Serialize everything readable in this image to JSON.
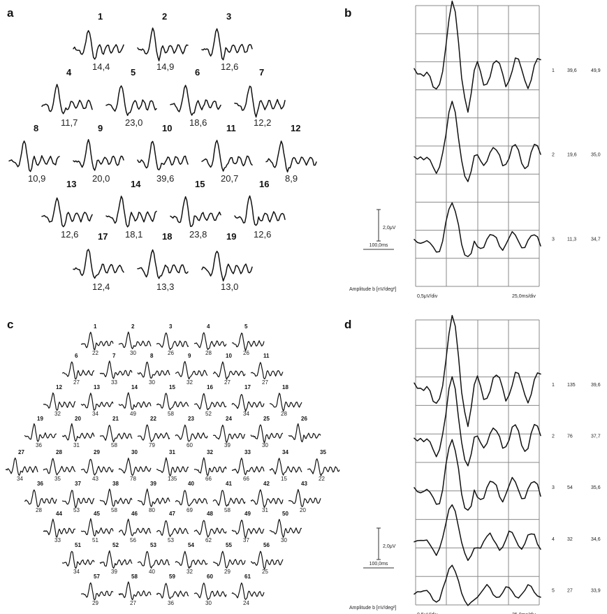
{
  "panels": {
    "a": {
      "letter": "a",
      "cells": [
        {
          "n": "1",
          "v": "14,4"
        },
        {
          "n": "2",
          "v": "14,9"
        },
        {
          "n": "3",
          "v": "12,6"
        },
        {
          "n": "4",
          "v": "11,7"
        },
        {
          "n": "5",
          "v": "23,0"
        },
        {
          "n": "6",
          "v": "18,6"
        },
        {
          "n": "7",
          "v": "12,2"
        },
        {
          "n": "8",
          "v": "10,9"
        },
        {
          "n": "9",
          "v": "20,0"
        },
        {
          "n": "10",
          "v": "39,6"
        },
        {
          "n": "11",
          "v": "20,7"
        },
        {
          "n": "12",
          "v": "8,9"
        },
        {
          "n": "13",
          "v": "12,6"
        },
        {
          "n": "14",
          "v": "18,1"
        },
        {
          "n": "15",
          "v": "23,8"
        },
        {
          "n": "16",
          "v": "12,6"
        },
        {
          "n": "17",
          "v": "12,4"
        },
        {
          "n": "18",
          "v": "13,3"
        },
        {
          "n": "19",
          "v": "13,0"
        }
      ]
    },
    "b": {
      "letter": "b",
      "rows": [
        {
          "idx": "1",
          "amp": "39,6",
          "lat": "49,9"
        },
        {
          "idx": "2",
          "amp": "19,6",
          "lat": "35,0"
        },
        {
          "idx": "3",
          "amp": "11,3",
          "lat": "34,7"
        }
      ],
      "scale_amp": "2,0μV",
      "scale_time": "100,0ms",
      "y_axis_label": "Amplitude b [nV/deg²]",
      "left_div": "0,5μV/div",
      "right_div": "25,0ms/div"
    },
    "c": {
      "letter": "c",
      "cells": [
        {
          "n": "1",
          "v": "22"
        },
        {
          "n": "2",
          "v": "30"
        },
        {
          "n": "3",
          "v": "26"
        },
        {
          "n": "4",
          "v": "28"
        },
        {
          "n": "5",
          "v": "26"
        },
        {
          "n": "6",
          "v": "27"
        },
        {
          "n": "7",
          "v": "33"
        },
        {
          "n": "8",
          "v": "30"
        },
        {
          "n": "9",
          "v": "32"
        },
        {
          "n": "10",
          "v": "27"
        },
        {
          "n": "11",
          "v": "27"
        },
        {
          "n": "12",
          "v": "32"
        },
        {
          "n": "13",
          "v": "34"
        },
        {
          "n": "14",
          "v": "49"
        },
        {
          "n": "15",
          "v": "58"
        },
        {
          "n": "16",
          "v": "52"
        },
        {
          "n": "17",
          "v": "34"
        },
        {
          "n": "18",
          "v": "28"
        },
        {
          "n": "19",
          "v": "36"
        },
        {
          "n": "20",
          "v": "31"
        },
        {
          "n": "21",
          "v": "58"
        },
        {
          "n": "22",
          "v": "79"
        },
        {
          "n": "23",
          "v": "60"
        },
        {
          "n": "24",
          "v": "39"
        },
        {
          "n": "25",
          "v": "30"
        },
        {
          "n": "26",
          "v": ""
        },
        {
          "n": "27",
          "v": "34"
        },
        {
          "n": "28",
          "v": "35"
        },
        {
          "n": "29",
          "v": "43"
        },
        {
          "n": "30",
          "v": "78"
        },
        {
          "n": "31",
          "v": "135"
        },
        {
          "n": "32",
          "v": "66"
        },
        {
          "n": "33",
          "v": "66"
        },
        {
          "n": "34",
          "v": "15"
        },
        {
          "n": "35",
          "v": "22"
        },
        {
          "n": "36",
          "v": "28"
        },
        {
          "n": "37",
          "v": "53"
        },
        {
          "n": "38",
          "v": "58"
        },
        {
          "n": "39",
          "v": "80"
        },
        {
          "n": "40",
          "v": "69"
        },
        {
          "n": "41",
          "v": "58"
        },
        {
          "n": "42",
          "v": "31"
        },
        {
          "n": "43",
          "v": "20"
        },
        {
          "n": "44",
          "v": "33"
        },
        {
          "n": "45",
          "v": "51"
        },
        {
          "n": "46",
          "v": "56"
        },
        {
          "n": "47",
          "v": "53"
        },
        {
          "n": "48",
          "v": "62"
        },
        {
          "n": "49",
          "v": "37"
        },
        {
          "n": "50",
          "v": "30"
        },
        {
          "n": "51",
          "v": "34"
        },
        {
          "n": "52",
          "v": "39"
        },
        {
          "n": "53",
          "v": "40"
        },
        {
          "n": "54",
          "v": "32"
        },
        {
          "n": "55",
          "v": "29"
        },
        {
          "n": "56",
          "v": "25"
        },
        {
          "n": "57",
          "v": "29"
        },
        {
          "n": "58",
          "v": "27"
        },
        {
          "n": "59",
          "v": "36"
        },
        {
          "n": "60",
          "v": "30"
        },
        {
          "n": "61",
          "v": "24"
        }
      ]
    },
    "d": {
      "letter": "d",
      "rows": [
        {
          "idx": "1",
          "amp": "135",
          "lat": "39,6"
        },
        {
          "idx": "2",
          "amp": "76",
          "lat": "37,7"
        },
        {
          "idx": "3",
          "amp": "54",
          "lat": "35,6"
        },
        {
          "idx": "4",
          "amp": "32",
          "lat": "34,6"
        },
        {
          "idx": "5",
          "amp": "27",
          "lat": "33,9"
        }
      ],
      "scale_amp": "2,0μV",
      "scale_time": "100,0ms",
      "y_axis_label": "Amplitude b [nV/deg²]",
      "left_div": "0,5μV/div",
      "right_div": "25,0ms/div"
    }
  }
}
